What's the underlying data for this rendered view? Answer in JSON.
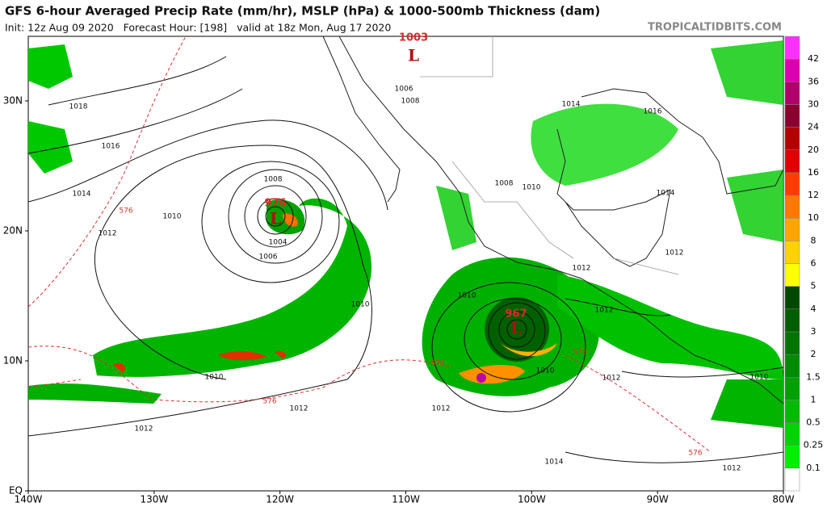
{
  "header": {
    "title": "GFS 6-hour Averaged Precip Rate (mm/hr), MSLP (hPa) & 1000-500mb Thickness (dam)",
    "subtitle": "Init: 12z Aug 09 2020   Forecast Hour: [198]   valid at 18z Mon, Aug 17 2020",
    "source": "TROPICALTIDBITS.COM"
  },
  "axes": {
    "lon_labels": [
      "140W",
      "130W",
      "120W",
      "110W",
      "100W",
      "90W",
      "80W"
    ],
    "lat_labels": [
      "EQ",
      "10N",
      "20N",
      "30N"
    ]
  },
  "colorbar": {
    "labels": [
      "0.1",
      "0.25",
      "0.5",
      "1",
      "1.5",
      "2",
      "3",
      "4",
      "5",
      "6",
      "8",
      "10",
      "12",
      "16",
      "20",
      "24",
      "30",
      "36",
      "42"
    ],
    "colors": [
      "#ffffff",
      "#00ee00",
      "#00d400",
      "#00bb00",
      "#00a000",
      "#008a00",
      "#007400",
      "#005e00",
      "#004800",
      "#ffff00",
      "#ffd200",
      "#ffa500",
      "#ff7800",
      "#ff3c00",
      "#e00000",
      "#b40000",
      "#8c0030",
      "#b0006a",
      "#dd00b0",
      "#ff30ff"
    ]
  },
  "lows": [
    {
      "pressure": "976",
      "label": "L"
    },
    {
      "pressure": "967",
      "label": "L"
    },
    {
      "pressure": "1003",
      "label": "L"
    }
  ],
  "isobar_labels": [
    "1018",
    "1016",
    "1014",
    "1010",
    "1012",
    "1008",
    "1004",
    "1006",
    "1010",
    "1010",
    "1012",
    "1012",
    "1006",
    "1008",
    "1014",
    "1016",
    "1014",
    "1008",
    "1010",
    "1012",
    "1012",
    "1012",
    "1010",
    "1012",
    "1012",
    "1010",
    "1014",
    "1012",
    "1010"
  ],
  "thickness_labels": [
    "576",
    "576",
    "576",
    "576",
    "576"
  ]
}
